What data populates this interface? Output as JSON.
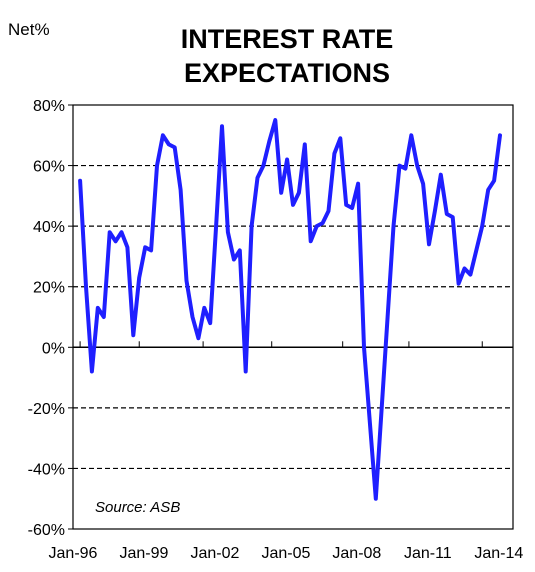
{
  "chart_data": {
    "type": "line",
    "title": [
      "INTEREST RATE",
      "EXPECTATIONS"
    ],
    "ylabel": "Net%",
    "source": "Source: ASB",
    "ylim": [
      -60,
      80
    ],
    "yticks": [
      -60,
      -40,
      -20,
      0,
      20,
      40,
      60,
      80
    ],
    "ytick_labels": [
      "-60%",
      "-40%",
      "-20%",
      "0%",
      "20%",
      "40%",
      "60%",
      "80%"
    ],
    "xlim": [
      1996.0,
      2014.6
    ],
    "xticks": [
      1996.0,
      1999.0,
      2002.0,
      2005.0,
      2008.0,
      2011.0,
      2014.0
    ],
    "xtick_labels": [
      "Jan-96",
      "Jan-99",
      "Jan-02",
      "Jan-05",
      "Jan-08",
      "Jan-11",
      "Jan-14"
    ],
    "minor_xticks": [
      1996.3,
      1998.8,
      2001.5,
      2004.4,
      2007.4,
      2010.2,
      2013.3
    ],
    "grid": "horizontal dashed at 20%, 40%, 60%, -20%, -40%",
    "legend": "none",
    "colors": {
      "line": "#1f1fff",
      "grid": "#000000",
      "frame": "#000000"
    },
    "series": [
      {
        "x": [
          1996.3,
          1996.55,
          1996.8,
          1997.05,
          1997.3,
          1997.55,
          1997.8,
          1998.05,
          1998.3,
          1998.55,
          1998.8,
          1999.05,
          1999.3,
          1999.55,
          1999.8,
          2000.05,
          2000.3,
          2000.55,
          2000.8,
          2001.05,
          2001.3,
          2001.55,
          2001.8,
          2002.05,
          2002.3,
          2002.55,
          2002.8,
          2003.05,
          2003.3,
          2003.55,
          2003.8,
          2004.05,
          2004.3,
          2004.55,
          2004.8,
          2005.05,
          2005.3,
          2005.55,
          2005.8,
          2006.05,
          2006.3,
          2006.55,
          2006.8,
          2007.05,
          2007.3,
          2007.55,
          2007.8,
          2008.05,
          2008.3,
          2008.55,
          2008.8,
          2009.05,
          2009.3,
          2009.55,
          2009.8,
          2010.05,
          2010.3,
          2010.55,
          2010.8,
          2011.05,
          2011.3,
          2011.55,
          2011.8,
          2012.05,
          2012.3,
          2012.55,
          2012.8,
          2013.05,
          2013.3,
          2013.55,
          2013.8,
          2014.05
        ],
        "y": [
          55,
          20,
          -8,
          13,
          10,
          38,
          35,
          38,
          33,
          4,
          23,
          33,
          32,
          60,
          70,
          67,
          66,
          52,
          22,
          10,
          3,
          13,
          8,
          40,
          73,
          38,
          29,
          32,
          -8,
          40,
          56,
          60,
          68,
          75,
          51,
          62,
          47,
          51,
          67,
          35,
          40,
          41,
          45,
          64,
          69,
          47,
          46,
          54,
          0,
          -25,
          -50,
          -20,
          10,
          40,
          60,
          59,
          70,
          60,
          54,
          34,
          45,
          57,
          44,
          43,
          21,
          26,
          24,
          32,
          40,
          52,
          55,
          70
        ]
      }
    ]
  }
}
